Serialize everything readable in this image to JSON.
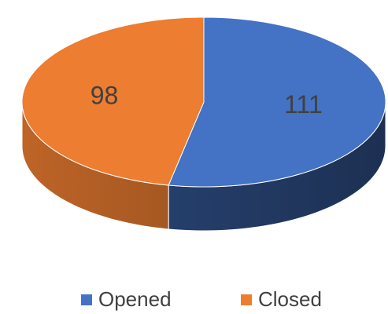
{
  "chart_data": {
    "type": "pie",
    "three_d": true,
    "categories": [
      "Opened",
      "Closed"
    ],
    "values": [
      111,
      98
    ],
    "colors": [
      "#4472c4",
      "#ed7d31"
    ],
    "legend": "bottom"
  }
}
